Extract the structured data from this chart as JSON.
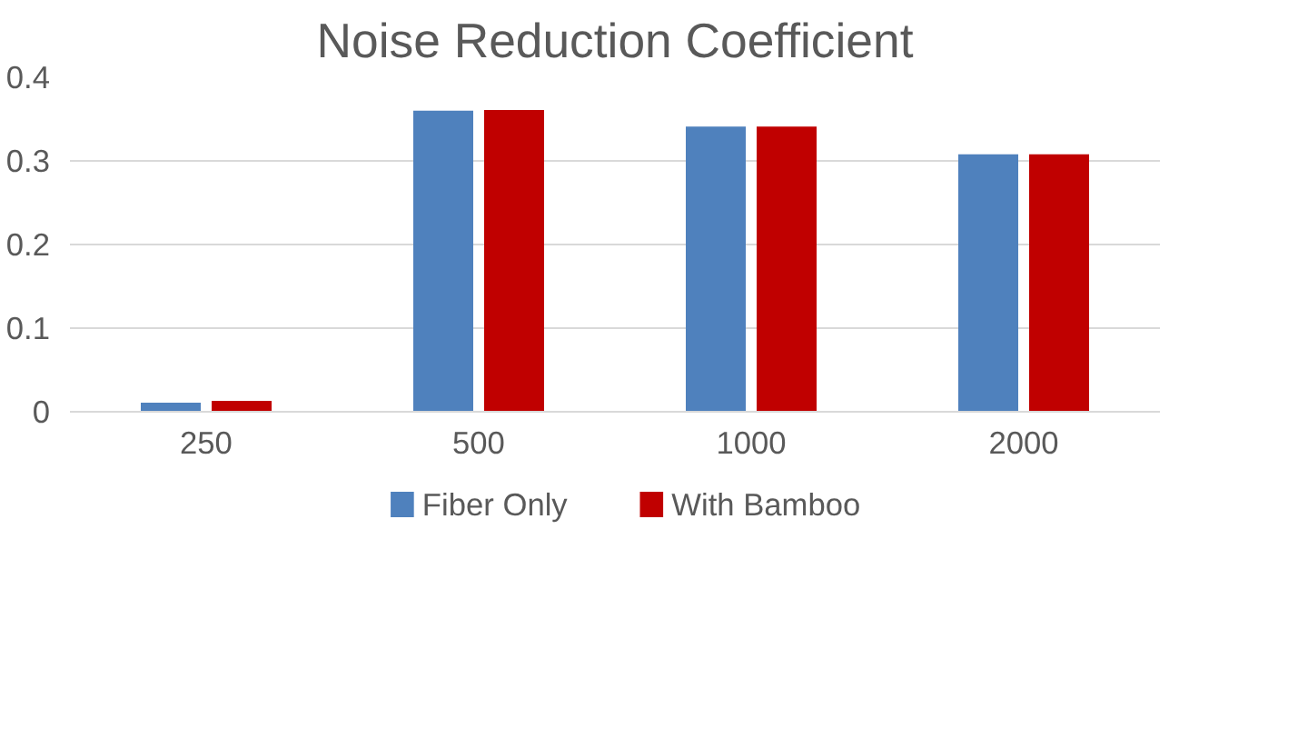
{
  "chart_data": {
    "type": "bar",
    "title": "Noise Reduction Coefficient",
    "categories": [
      "250",
      "500",
      "1000",
      "2000"
    ],
    "series": [
      {
        "name": "Fiber Only",
        "color": "#4f81bd",
        "values": [
          0.011,
          0.36,
          0.341,
          0.308
        ]
      },
      {
        "name": "With Bamboo",
        "color": "#c00000",
        "values": [
          0.013,
          0.361,
          0.341,
          0.308
        ]
      }
    ],
    "ylim": [
      0,
      0.4
    ],
    "yticks": [
      {
        "value": 0,
        "label": "0"
      },
      0.1,
      0.2,
      0.3,
      0.4
    ],
    "grid": "y",
    "legend": "bottom"
  }
}
